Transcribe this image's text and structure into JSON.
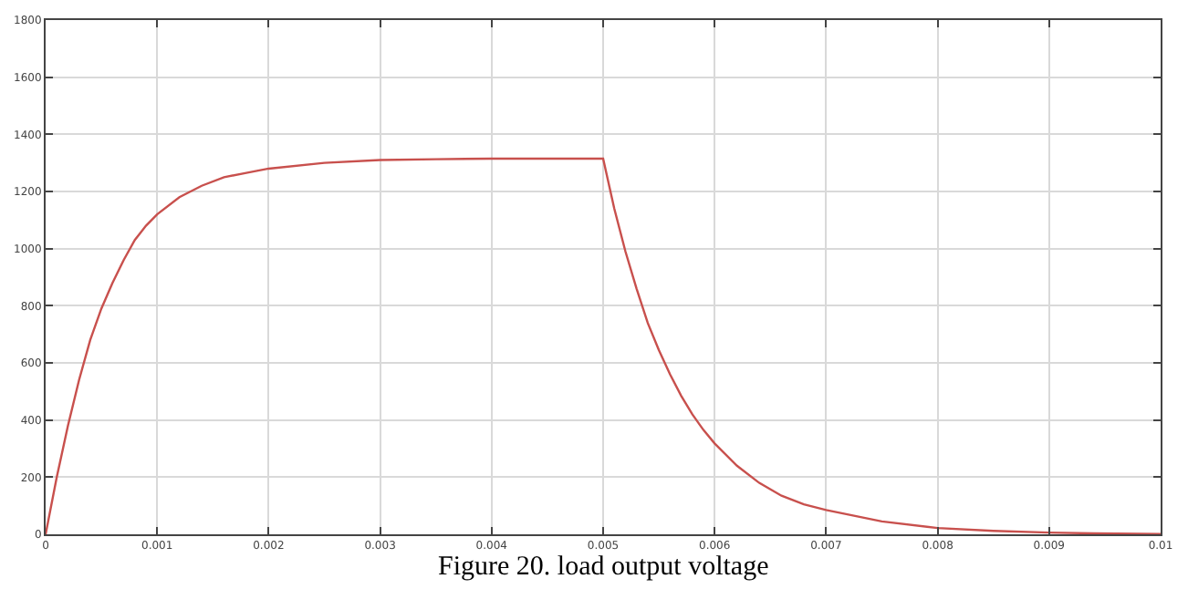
{
  "chart_data": {
    "type": "line",
    "x": [
      0,
      0.0001,
      0.0002,
      0.0003,
      0.0004,
      0.0005,
      0.0006,
      0.0007,
      0.0008,
      0.0009,
      0.001,
      0.0012,
      0.0014,
      0.0016,
      0.0018,
      0.002,
      0.0025,
      0.003,
      0.0035,
      0.004,
      0.005,
      0.0051,
      0.0052,
      0.0053,
      0.0054,
      0.0055,
      0.0056,
      0.0057,
      0.0058,
      0.0059,
      0.006,
      0.0062,
      0.0064,
      0.0066,
      0.0068,
      0.007,
      0.0075,
      0.008,
      0.0085,
      0.009,
      0.0094,
      0.01
    ],
    "series": [
      {
        "color": "#c8504d",
        "values": [
          0,
          200,
          380,
          540,
          680,
          790,
          880,
          960,
          1030,
          1080,
          1120,
          1180,
          1220,
          1250,
          1265,
          1280,
          1300,
          1310,
          1313,
          1315,
          1315,
          1140,
          990,
          860,
          740,
          645,
          560,
          485,
          420,
          365,
          318,
          240,
          180,
          135,
          105,
          85,
          45,
          22,
          12,
          6,
          3,
          1
        ]
      }
    ],
    "xlim": [
      0,
      0.01
    ],
    "xticks": [
      0,
      0.001,
      0.002,
      0.003,
      0.004,
      0.005,
      0.006,
      0.007,
      0.008,
      0.009,
      0.01
    ],
    "ylim": [
      0,
      1800
    ],
    "yticks": [
      0,
      200,
      400,
      600,
      800,
      1000,
      1200,
      1400,
      1600,
      1800
    ],
    "grid": true,
    "legend": false,
    "marker": "none",
    "line_style": "solid",
    "annotations": [
      "Figure 20. load output voltage"
    ]
  }
}
